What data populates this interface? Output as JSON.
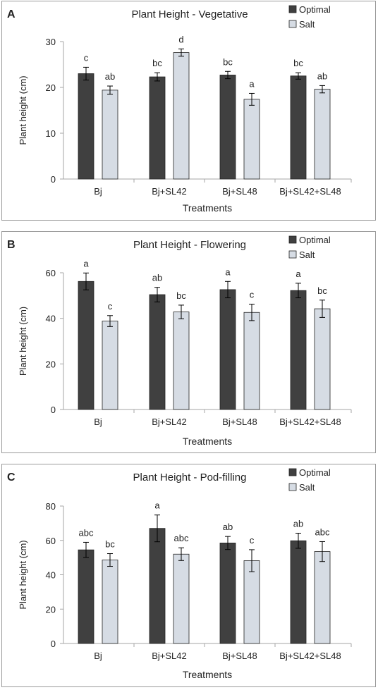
{
  "colors": {
    "optimal": "#404040",
    "salt": "#d6dce4",
    "axis": "#a6a6a6",
    "panel_border": "#9a9a9a",
    "bar_stroke": "#222222"
  },
  "chart_data": [
    {
      "type": "bar",
      "panel_label": "A",
      "title": "Plant Height - Vegetative",
      "xlabel": "Treatments",
      "ylabel": "Plant height (cm)",
      "categories": [
        "Bj",
        "Bj+SL42",
        "Bj+SL48",
        "Bj+SL42+SL48"
      ],
      "ylim": [
        0,
        30
      ],
      "yticks": [
        0,
        10,
        20,
        30
      ],
      "grid": false,
      "legend_position": "top-right",
      "series": [
        {
          "name": "Optimal",
          "values": [
            23.0,
            22.3,
            22.7,
            22.5
          ],
          "errors": [
            1.4,
            0.9,
            0.8,
            0.7
          ],
          "labels": [
            "c",
            "bc",
            "bc",
            "bc"
          ]
        },
        {
          "name": "Salt",
          "values": [
            19.4,
            27.6,
            17.4,
            19.6
          ],
          "errors": [
            0.9,
            0.8,
            1.3,
            0.8
          ],
          "labels": [
            "ab",
            "d",
            "a",
            "ab"
          ]
        }
      ]
    },
    {
      "type": "bar",
      "panel_label": "B",
      "title": "Plant Height - Flowering",
      "xlabel": "Treatments",
      "ylabel": "Plant height (cm)",
      "categories": [
        "Bj",
        "Bj+SL42",
        "Bj+SL48",
        "Bj+SL42+SL48"
      ],
      "ylim": [
        0,
        60
      ],
      "yticks": [
        0,
        20,
        40,
        60
      ],
      "grid": false,
      "legend_position": "top-right",
      "series": [
        {
          "name": "Optimal",
          "values": [
            56.2,
            50.4,
            52.6,
            52.2
          ],
          "errors": [
            3.7,
            3.2,
            3.6,
            3.2
          ],
          "labels": [
            "a",
            "ab",
            "a",
            "a"
          ]
        },
        {
          "name": "Salt",
          "values": [
            38.8,
            42.8,
            42.6,
            44.2
          ],
          "errors": [
            2.4,
            3.0,
            3.6,
            3.8
          ],
          "labels": [
            "c",
            "bc",
            "c",
            "bc"
          ]
        }
      ]
    },
    {
      "type": "bar",
      "panel_label": "C",
      "title": "Plant Height - Pod-filling",
      "xlabel": "Treatments",
      "ylabel": "Plant height (cm)",
      "categories": [
        "Bj",
        "Bj+SL42",
        "Bj+SL48",
        "Bj+SL42+SL48"
      ],
      "ylim": [
        0,
        80
      ],
      "yticks": [
        0,
        20,
        40,
        60,
        80
      ],
      "grid": false,
      "legend_position": "top-right",
      "series": [
        {
          "name": "Optimal",
          "values": [
            54.5,
            67.0,
            58.5,
            59.8
          ],
          "errors": [
            4.4,
            7.8,
            3.8,
            4.4
          ],
          "labels": [
            "abc",
            "a",
            "ab",
            "ab"
          ]
        },
        {
          "name": "Salt",
          "values": [
            48.6,
            52.0,
            48.2,
            53.5
          ],
          "errors": [
            3.7,
            3.7,
            6.4,
            5.8
          ],
          "labels": [
            "bc",
            "abc",
            "c",
            "abc"
          ]
        }
      ]
    }
  ]
}
